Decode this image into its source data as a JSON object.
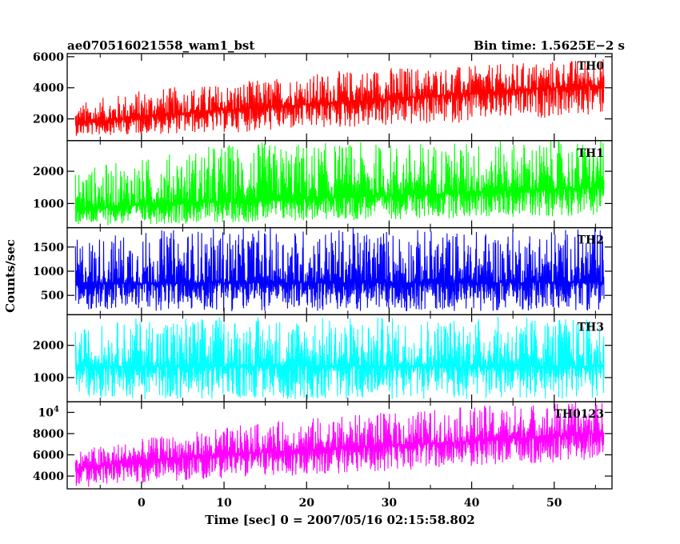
{
  "chart_data": {
    "type": "line",
    "title_left": "ae070516021558_wam1_bst",
    "title_right": "Bin time: 1.5625E−2 s",
    "xlabel": "Time [sec] 0 = 2007/05/16 02:15:58.802",
    "ylabel": "Counts/sec",
    "xlim": [
      -9,
      57
    ],
    "x_ticks": [
      "0",
      "10",
      "20",
      "30",
      "40",
      "50"
    ],
    "x_data_range": [
      -8.0,
      56.0
    ],
    "grid": false,
    "panels": [
      {
        "name": "TH0",
        "color": "#ff0000",
        "ylim": [
          600,
          6200
        ],
        "y_ticks": [
          "2000",
          "4000",
          "6000"
        ],
        "trend": {
          "x": [
            -8,
            0,
            10,
            20,
            30,
            40,
            50,
            56
          ],
          "mean": [
            1650,
            2150,
            2550,
            2950,
            3300,
            3650,
            4000,
            4150
          ],
          "max": [
            3000,
            3900,
            4300,
            4900,
            5400,
            5400,
            5800,
            5900
          ],
          "min": [
            900,
            1000,
            1100,
            1300,
            1500,
            1800,
            2100,
            2300
          ]
        }
      },
      {
        "name": "TH1",
        "color": "#00ff00",
        "ylim": [
          250,
          2950
        ],
        "y_ticks": [
          "1000",
          "2000"
        ],
        "trend": {
          "x": [
            -8,
            0,
            10,
            20,
            30,
            40,
            50,
            56
          ],
          "mean": [
            850,
            950,
            1050,
            1150,
            1250,
            1350,
            1450,
            1500
          ],
          "max": [
            2100,
            2400,
            2900,
            2900,
            2900,
            2950,
            2950,
            2950
          ],
          "min": [
            300,
            350,
            400,
            450,
            500,
            550,
            600,
            650
          ]
        }
      },
      {
        "name": "TH2",
        "color": "#0000ff",
        "ylim": [
          100,
          1900
        ],
        "y_ticks": [
          "500",
          "1000",
          "1500"
        ],
        "trend": {
          "x": [
            -8,
            0,
            10,
            20,
            30,
            40,
            50,
            56
          ],
          "mean": [
            750,
            750,
            760,
            760,
            760,
            760,
            770,
            770
          ],
          "max": [
            1700,
            1850,
            1900,
            1900,
            1900,
            1850,
            1900,
            1900
          ],
          "min": [
            200,
            180,
            170,
            170,
            170,
            180,
            180,
            190
          ]
        }
      },
      {
        "name": "TH3",
        "color": "#00ffff",
        "ylim": [
          250,
          2950
        ],
        "y_ticks": [
          "1000",
          "2000"
        ],
        "trend": {
          "x": [
            -8,
            0,
            10,
            20,
            30,
            40,
            50,
            56
          ],
          "mean": [
            1350,
            1350,
            1360,
            1360,
            1350,
            1350,
            1360,
            1360
          ],
          "max": [
            2500,
            2900,
            2900,
            2900,
            2900,
            2900,
            2900,
            2800
          ],
          "min": [
            400,
            320,
            320,
            320,
            320,
            320,
            320,
            350
          ]
        }
      },
      {
        "name": "TH0123",
        "color": "#ff00ff",
        "ylim": [
          2800,
          11000
        ],
        "y_ticks": [
          "4000",
          "6000",
          "8000",
          "10^4"
        ],
        "trend": {
          "x": [
            -8,
            0,
            10,
            20,
            30,
            40,
            50,
            56
          ],
          "mean": [
            4700,
            5500,
            6000,
            6500,
            6900,
            7300,
            7800,
            8000
          ],
          "max": [
            6500,
            7500,
            8600,
            9500,
            10000,
            10600,
            11000,
            11000
          ],
          "min": [
            2900,
            3300,
            3800,
            4100,
            4500,
            4900,
            5300,
            5600
          ]
        }
      }
    ]
  }
}
